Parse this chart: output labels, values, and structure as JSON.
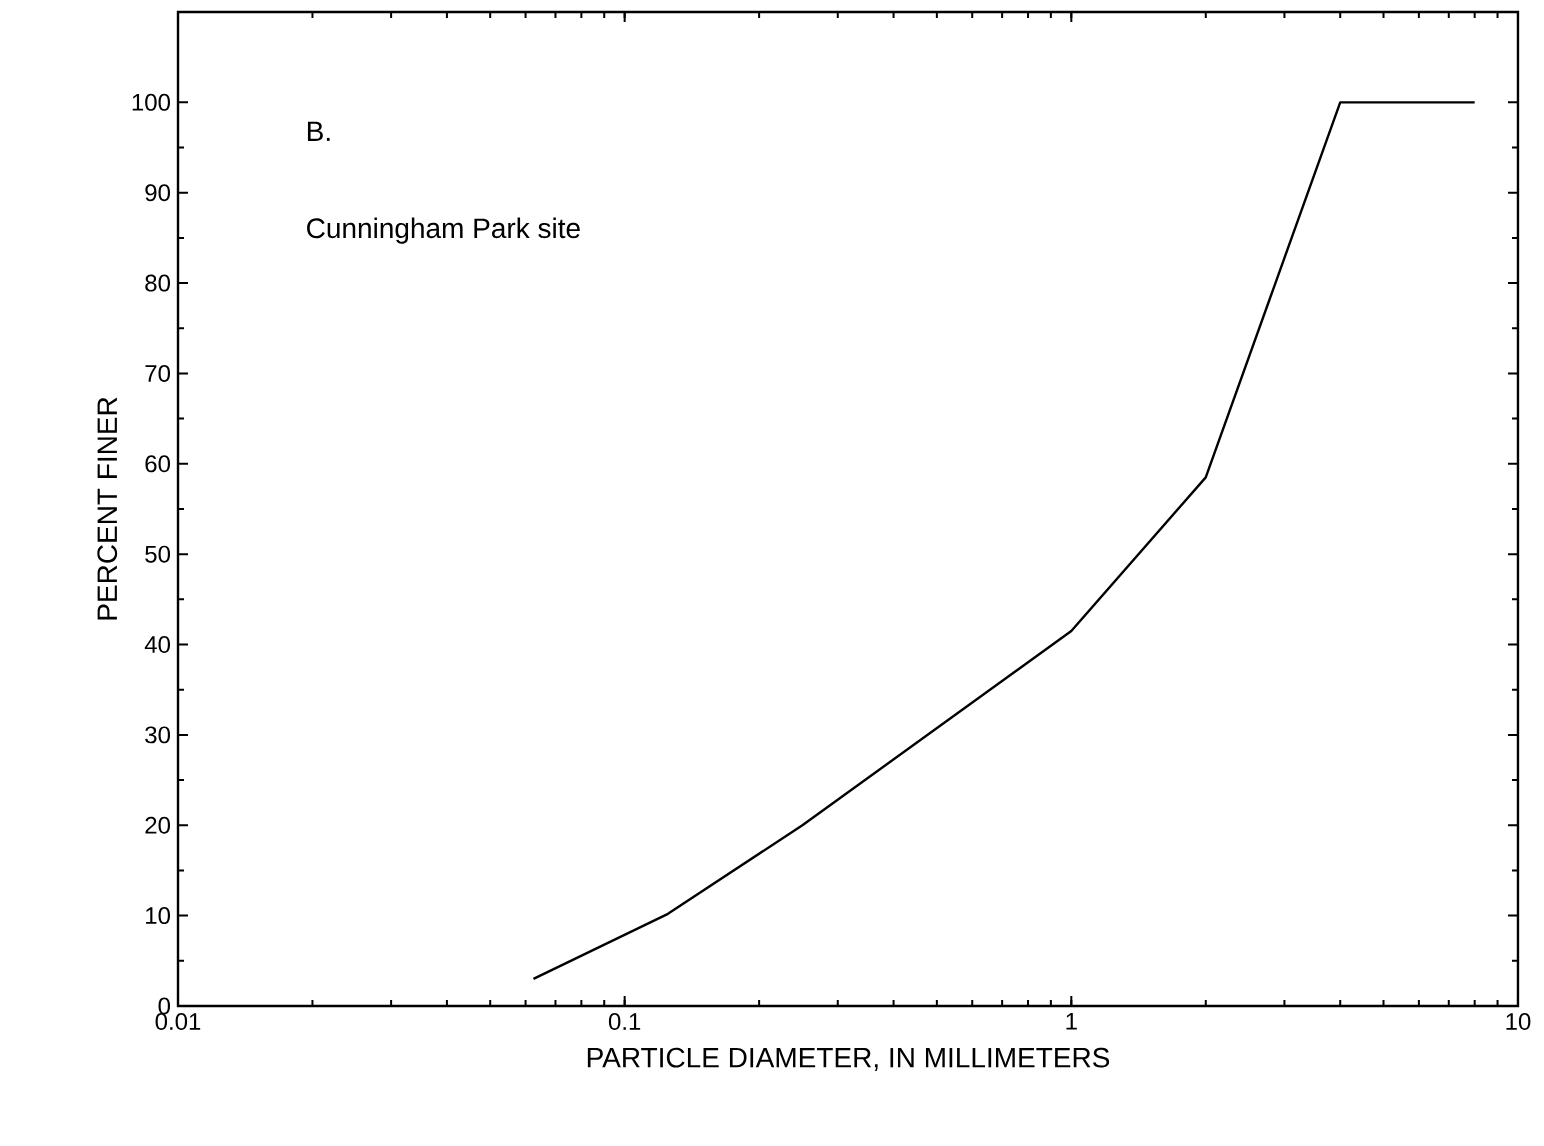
{
  "chart_data": {
    "type": "line",
    "xlabel": "PARTICLE DIAMETER, IN MILLIMETERS",
    "ylabel": "PERCENT FINER",
    "annotations": [
      "B.",
      "Cunningham Park site"
    ],
    "x": [
      0.0625,
      0.125,
      0.25,
      1,
      2,
      4,
      8
    ],
    "values": [
      3,
      10.2,
      20,
      41.5,
      58.5,
      100,
      100
    ],
    "color": "#000000",
    "log": "x",
    "grid": false,
    "marker": "none",
    "line_style": "solid",
    "xlim": [
      0.01,
      10
    ],
    "xticks": [
      0.01,
      0.1,
      1,
      10
    ],
    "ylim": [
      0,
      110
    ],
    "yticks": [
      0,
      10,
      20,
      30,
      40,
      50,
      60,
      70,
      80,
      90,
      100
    ]
  }
}
